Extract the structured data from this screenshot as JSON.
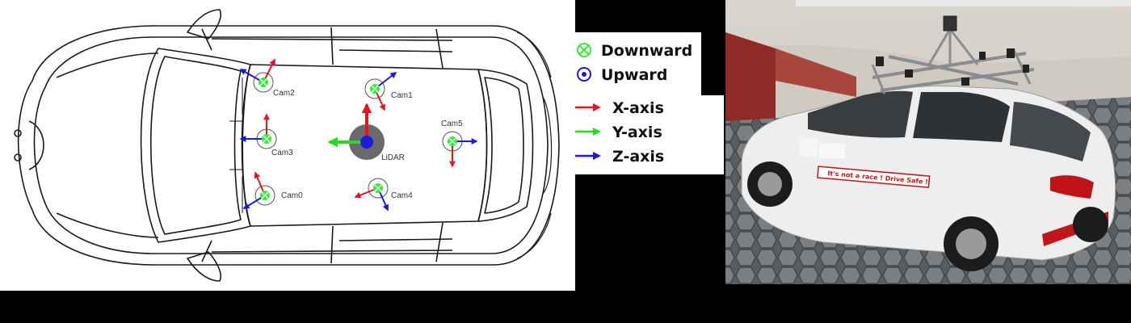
{
  "sensors": [
    {
      "id": "cam2",
      "label": "Cam2"
    },
    {
      "id": "cam1",
      "label": "Cam1"
    },
    {
      "id": "cam3",
      "label": "Cam3"
    },
    {
      "id": "lidar",
      "label": "LiDAR"
    },
    {
      "id": "cam5",
      "label": "Cam5"
    },
    {
      "id": "cam0",
      "label": "Cam0"
    },
    {
      "id": "cam4",
      "label": "Cam4"
    }
  ],
  "legend": {
    "downward": "Downward",
    "upward": "Upward",
    "x_axis": "X-axis",
    "y_axis": "Y-axis",
    "z_axis": "Z-axis"
  },
  "colors": {
    "x_axis": "#e8141c",
    "y_axis": "#22dd22",
    "z_axis": "#1a1ad8",
    "downward_marker": "#33ee33",
    "upward_marker": "#1a1ad8",
    "lidar_base": "#6a6a6a"
  },
  "photo": {
    "side_banner": "It's not a race ! Drive Safe !"
  }
}
